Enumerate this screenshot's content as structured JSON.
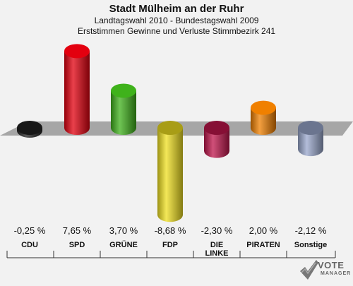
{
  "header": {
    "title": "Stadt Mülheim an der Ruhr",
    "subtitle1": "Landtagswahl 2010 - Bundestagswahl 2009",
    "subtitle2": "Erststimmen Gewinne und Verluste Stimmbezirk 241"
  },
  "chart_data": {
    "type": "bar",
    "categories": [
      "CDU",
      "SPD",
      "GRÜNE",
      "FDP",
      "DIE\nLINKE",
      "PIRATEN",
      "Sonstige"
    ],
    "values": [
      -0.25,
      7.65,
      3.7,
      -8.68,
      -2.3,
      2.0,
      -2.12
    ],
    "value_labels": [
      "-0,25 %",
      "7,65 %",
      "3,70 %",
      "-8,68 %",
      "-2,30 %",
      "2,00 %",
      "-2,12 %"
    ],
    "colors": [
      "#222222",
      "#e3000f",
      "#3fb21b",
      "#f0e020",
      "#c0154c",
      "#f08000",
      "#99a7cc"
    ],
    "ylim": [
      -8.68,
      7.65
    ]
  },
  "logo": {
    "name": "vote-manager-logo",
    "text": "VOTE",
    "subtext": "MANAGER"
  }
}
